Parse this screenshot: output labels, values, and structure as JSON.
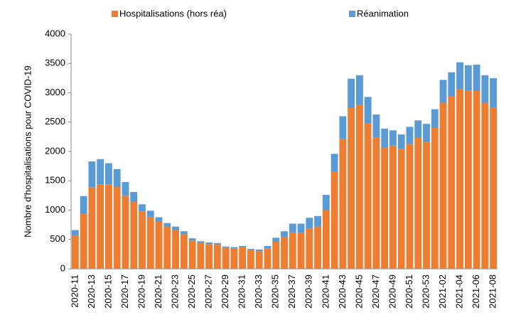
{
  "chart_data": {
    "type": "stacked_bar",
    "y_label": "Nombre d'hospitalisations pour COVID-19",
    "categories": [
      "2020-11",
      null,
      "2020-13",
      null,
      "2020-15",
      null,
      "2020-17",
      null,
      "2020-19",
      null,
      "2020-21",
      null,
      "2020-23",
      null,
      "2020-25",
      null,
      "2020-27",
      null,
      "2020-29",
      null,
      "2020-31",
      null,
      "2020-33",
      null,
      "2020-35",
      null,
      "2020-37",
      null,
      "2020-39",
      null,
      "2020-41",
      null,
      "2020-43",
      null,
      "2020-45",
      null,
      "2020-47",
      null,
      "2020-49",
      null,
      "2020-51",
      null,
      "2020-53",
      null,
      "2021-02",
      null,
      "2021-04",
      null,
      "2021-06",
      null,
      "2021-08"
    ],
    "series": [
      {
        "name": "Hospitalisations (hors réa)",
        "color": "#ED7D31",
        "values": [
          570,
          940,
          1390,
          1440,
          1440,
          1400,
          1250,
          1140,
          980,
          880,
          800,
          720,
          660,
          590,
          480,
          440,
          420,
          410,
          360,
          350,
          370,
          320,
          300,
          350,
          460,
          540,
          620,
          610,
          690,
          720,
          1000,
          1660,
          2220,
          2740,
          2800,
          2480,
          2240,
          2060,
          2100,
          2040,
          2130,
          2230,
          2160,
          2400,
          2830,
          2940,
          3060,
          3040,
          3030,
          2830,
          2750
        ]
      },
      {
        "name": "Réanimation",
        "color": "#5B9BD5",
        "values": [
          90,
          300,
          440,
          430,
          360,
          300,
          230,
          170,
          120,
          110,
          80,
          60,
          60,
          50,
          40,
          30,
          30,
          30,
          20,
          20,
          20,
          20,
          30,
          40,
          70,
          100,
          150,
          160,
          180,
          180,
          260,
          300,
          380,
          500,
          500,
          450,
          390,
          330,
          260,
          250,
          290,
          300,
          310,
          320,
          390,
          410,
          460,
          430,
          450,
          470,
          500
        ]
      }
    ],
    "ylim": [
      0,
      4000
    ],
    "yticks": [
      0,
      500,
      1000,
      1500,
      2000,
      2500,
      3000,
      3500,
      4000
    ],
    "grid": false,
    "legend": "top"
  }
}
